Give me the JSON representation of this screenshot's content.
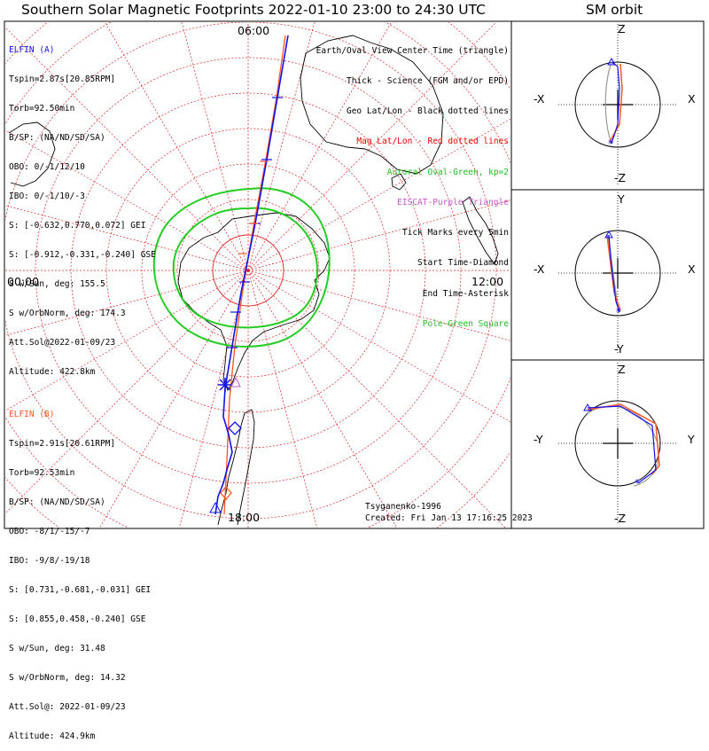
{
  "title": "Southern Solar Magnetic Footprints 2022-01-10 23:00 to 24:30 UTC",
  "orbit_title": "SM orbit",
  "time_labels": {
    "top": "06:00",
    "left": "00:00",
    "right": "12:00",
    "bottom": "18:00"
  },
  "elfin_a": {
    "name": "ELFIN (A)",
    "color": "#1010ee",
    "lines": [
      "Tspin=2.87s[20.85RPM]",
      "Torb=92.50min",
      "B/SP: (NA/ND/SD/SA)",
      "OBO: 0/-1/12/10",
      "IBO: 0/-1/10/-3",
      "S: [-0.632,0.770,0.072] GEI",
      "S: [-0.912,-0.331,-0.240] GSE",
      "S w/Sun, deg: 155.5",
      "S w/OrbNorm, deg: 174.3",
      "Att.Sol@2022-01-09/23",
      "Altitude: 422.8km"
    ]
  },
  "elfin_b": {
    "name": "ELFIN (B)",
    "color": "#ff5522",
    "lines": [
      "Tspin=2.91s[20.61RPM]",
      "Torb=92.53min",
      "B/SP: (NA/ND/SD/SA)",
      "OBO: -8/1/-15/-7",
      "IBO: -9/8/-19/18",
      "S: [0.731,-0.681,-0.031] GEI",
      "S: [0.855,0.458,-0.240] GSE",
      "S w/Sun, deg: 31.48",
      "S w/OrbNorm, deg: 14.32",
      "Att.Sol@: 2022-01-09/23",
      "Altitude: 424.9km"
    ]
  },
  "legend": [
    {
      "text": "Earth/Oval View Center Time (triangle)",
      "color": "#000000"
    },
    {
      "text": "Thick - Science (FGM and/or EPD)",
      "color": "#000000"
    },
    {
      "text": "Geo Lat/Lon - Black dotted lines",
      "color": "#000000"
    },
    {
      "text": "Mag Lat/Lon - Red dotted lines",
      "color": "#ee0000"
    },
    {
      "text": "Auroral Oval-Green, kp=2",
      "color": "#22bb22"
    },
    {
      "text": "EISCAT-Purple Triangle",
      "color": "#cc55cc"
    },
    {
      "text": "Tick Marks every 5min",
      "color": "#000000"
    },
    {
      "text": "Start Time-Diamond",
      "color": "#000000"
    },
    {
      "text": "End Time-Asterisk",
      "color": "#000000"
    },
    {
      "text": "Pole-Green Square",
      "color": "#22bb22"
    }
  ],
  "model_label": "Tsyganenko-1996",
  "created_label": "Created: Fri Jan 13 17:16:25 2023",
  "orbit_panels": [
    {
      "top": "Z",
      "bottom": "-Z",
      "left": "-X",
      "right": "X"
    },
    {
      "top": "Y",
      "bottom": "-Y",
      "left": "-X",
      "right": "X"
    },
    {
      "top": "Z",
      "bottom": "-Z",
      "left": "-Y",
      "right": "Y"
    }
  ],
  "colors": {
    "mag_grid": "#dd2222",
    "oval": "#22cc22",
    "eiscat": "#cc55cc",
    "track_a": "#1010ee",
    "track_b": "#ff5522",
    "orbit_ref": "#999999"
  }
}
